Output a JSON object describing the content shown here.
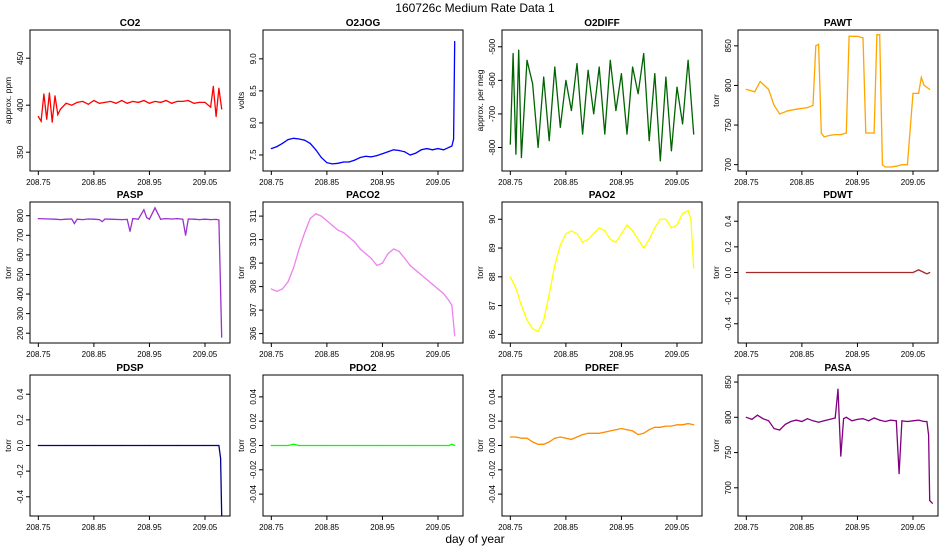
{
  "title": "160726c   Medium Rate Data 1",
  "xlabel": "day of year",
  "chart_data": [
    {
      "type": "line",
      "title": "CO2",
      "ylabel": "approx. ppm",
      "color": "#ff0000",
      "xlim": [
        208.735,
        209.095
      ],
      "ylim": [
        330,
        480
      ],
      "yticks": [
        350,
        400,
        450
      ],
      "xticks": [
        208.75,
        208.85,
        208.95,
        209.05
      ],
      "x": [
        208.75,
        208.755,
        208.76,
        208.765,
        208.77,
        208.775,
        208.78,
        208.785,
        208.79,
        208.8,
        208.81,
        208.82,
        208.83,
        208.84,
        208.85,
        208.86,
        208.87,
        208.88,
        208.89,
        208.9,
        208.91,
        208.92,
        208.93,
        208.94,
        208.95,
        208.96,
        208.97,
        208.98,
        208.99,
        209.0,
        209.01,
        209.02,
        209.03,
        209.04,
        209.05,
        209.06,
        209.065,
        209.07,
        209.075,
        209.08
      ],
      "y": [
        388,
        383,
        412,
        385,
        413,
        382,
        410,
        390,
        396,
        402,
        400,
        403,
        404,
        401,
        405,
        402,
        403,
        404,
        402,
        405,
        402,
        404,
        403,
        405,
        402,
        404,
        403,
        405,
        402,
        404,
        404,
        405,
        402,
        403,
        403,
        398,
        420,
        388,
        418,
        396
      ]
    },
    {
      "type": "line",
      "title": "O2JOG",
      "ylabel": "volts",
      "color": "#0000ff",
      "xlim": [
        208.735,
        209.095
      ],
      "ylim": [
        7.25,
        9.45
      ],
      "yticks": [
        7.5,
        8.0,
        8.5,
        9.0
      ],
      "xticks": [
        208.75,
        208.85,
        208.95,
        209.05
      ],
      "x": [
        208.75,
        208.76,
        208.77,
        208.78,
        208.79,
        208.8,
        208.81,
        208.82,
        208.83,
        208.84,
        208.85,
        208.86,
        208.87,
        208.88,
        208.89,
        208.9,
        208.91,
        208.92,
        208.93,
        208.94,
        208.95,
        208.96,
        208.97,
        208.98,
        208.99,
        209.0,
        209.01,
        209.02,
        209.03,
        209.04,
        209.05,
        209.06,
        209.07,
        209.075,
        209.078,
        209.08
      ],
      "y": [
        7.6,
        7.63,
        7.68,
        7.74,
        7.76,
        7.75,
        7.73,
        7.68,
        7.58,
        7.46,
        7.38,
        7.36,
        7.37,
        7.39,
        7.39,
        7.42,
        7.46,
        7.48,
        7.47,
        7.49,
        7.52,
        7.55,
        7.58,
        7.57,
        7.55,
        7.5,
        7.53,
        7.58,
        7.6,
        7.58,
        7.6,
        7.58,
        7.62,
        7.64,
        7.75,
        9.27
      ]
    },
    {
      "type": "line",
      "title": "O2DIFF",
      "ylabel": "approx. per meg",
      "color": "#006400",
      "xlim": [
        208.735,
        209.095
      ],
      "ylim": [
        -870,
        -450
      ],
      "yticks": [
        -800,
        -700,
        -600,
        -500
      ],
      "xticks": [
        208.75,
        208.85,
        208.95,
        209.05
      ],
      "x": [
        208.75,
        208.755,
        208.76,
        208.765,
        208.77,
        208.78,
        208.79,
        208.8,
        208.81,
        208.82,
        208.83,
        208.84,
        208.85,
        208.86,
        208.87,
        208.88,
        208.89,
        208.9,
        208.91,
        208.92,
        208.93,
        208.94,
        208.95,
        208.96,
        208.97,
        208.98,
        208.99,
        209.0,
        209.01,
        209.02,
        209.03,
        209.04,
        209.05,
        209.06,
        209.07,
        209.08
      ],
      "y": [
        -790,
        -520,
        -820,
        -510,
        -830,
        -540,
        -610,
        -800,
        -590,
        -780,
        -560,
        -740,
        -600,
        -690,
        -550,
        -760,
        -570,
        -700,
        -560,
        -760,
        -540,
        -690,
        -580,
        -760,
        -560,
        -640,
        -520,
        -780,
        -580,
        -840,
        -590,
        -810,
        -620,
        -730,
        -540,
        -760
      ]
    },
    {
      "type": "line",
      "title": "PAWT",
      "ylabel": "torr",
      "color": "#ffa500",
      "xlim": [
        208.735,
        209.095
      ],
      "ylim": [
        692,
        870
      ],
      "yticks": [
        700,
        750,
        800,
        850
      ],
      "xticks": [
        208.75,
        208.85,
        208.95,
        209.05
      ],
      "x": [
        208.75,
        208.765,
        208.775,
        208.79,
        208.8,
        208.81,
        208.825,
        208.84,
        208.86,
        208.87,
        208.875,
        208.88,
        208.885,
        208.89,
        208.9,
        208.91,
        208.92,
        208.93,
        208.935,
        208.95,
        208.96,
        208.965,
        208.97,
        208.98,
        208.985,
        208.99,
        208.995,
        209.0,
        209.01,
        209.02,
        209.03,
        209.04,
        209.05,
        209.06,
        209.065,
        209.07,
        209.08
      ],
      "y": [
        795,
        792,
        805,
        795,
        775,
        764,
        768,
        770,
        772,
        775,
        850,
        852,
        740,
        735,
        737,
        738,
        738,
        740,
        862,
        862,
        860,
        740,
        740,
        740,
        864,
        864,
        700,
        697,
        697,
        698,
        700,
        700,
        790,
        790,
        810,
        800,
        795
      ]
    },
    {
      "type": "line",
      "title": "PASP",
      "ylabel": "torr",
      "color": "#9932cc",
      "xlim": [
        208.735,
        209.095
      ],
      "ylim": [
        150,
        870
      ],
      "yticks": [
        200,
        300,
        400,
        500,
        600,
        700,
        800
      ],
      "xticks": [
        208.75,
        208.85,
        208.95,
        209.05
      ],
      "x": [
        208.75,
        208.77,
        208.78,
        208.79,
        208.8,
        208.81,
        208.815,
        208.82,
        208.83,
        208.84,
        208.85,
        208.86,
        208.865,
        208.87,
        208.88,
        208.9,
        208.91,
        208.915,
        208.92,
        208.93,
        208.94,
        208.945,
        208.95,
        208.96,
        208.97,
        208.98,
        208.99,
        209.0,
        209.01,
        209.015,
        209.02,
        209.03,
        209.04,
        209.05,
        209.06,
        209.07,
        209.075,
        209.08
      ],
      "y": [
        785,
        783,
        782,
        780,
        782,
        783,
        760,
        782,
        780,
        783,
        782,
        780,
        770,
        783,
        782,
        780,
        781,
        720,
        785,
        782,
        830,
        790,
        782,
        840,
        782,
        785,
        783,
        785,
        782,
        700,
        783,
        782,
        780,
        782,
        780,
        781,
        778,
        180
      ]
    },
    {
      "type": "line",
      "title": "PACO2",
      "ylabel": "torr",
      "color": "#ee82ee",
      "xlim": [
        208.735,
        209.095
      ],
      "ylim": [
        305.6,
        311.6
      ],
      "yticks": [
        306,
        307,
        308,
        309,
        310,
        311
      ],
      "xticks": [
        208.75,
        208.85,
        208.95,
        209.05
      ],
      "x": [
        208.75,
        208.76,
        208.77,
        208.78,
        208.79,
        208.8,
        208.81,
        208.82,
        208.83,
        208.84,
        208.85,
        208.86,
        208.87,
        208.88,
        208.89,
        208.9,
        208.91,
        208.92,
        208.93,
        208.94,
        208.95,
        208.96,
        208.97,
        208.98,
        208.99,
        209.0,
        209.01,
        209.02,
        209.03,
        209.04,
        209.05,
        209.06,
        209.07,
        209.075,
        209.08
      ],
      "y": [
        307.9,
        307.8,
        307.9,
        308.2,
        308.8,
        309.6,
        310.3,
        310.9,
        311.1,
        311.0,
        310.8,
        310.6,
        310.4,
        310.3,
        310.1,
        309.9,
        309.6,
        309.4,
        309.2,
        308.9,
        309.0,
        309.4,
        309.6,
        309.5,
        309.2,
        308.9,
        308.7,
        308.5,
        308.3,
        308.1,
        307.9,
        307.7,
        307.4,
        307.2,
        305.9
      ]
    },
    {
      "type": "line",
      "title": "PAO2",
      "ylabel": "torr",
      "color": "#ffff00",
      "xlim": [
        208.735,
        209.095
      ],
      "ylim": [
        85.7,
        90.6
      ],
      "yticks": [
        86,
        87,
        88,
        89,
        90
      ],
      "xticks": [
        208.75,
        208.85,
        208.95,
        209.05
      ],
      "x": [
        208.75,
        208.76,
        208.77,
        208.78,
        208.79,
        208.8,
        208.81,
        208.82,
        208.83,
        208.84,
        208.85,
        208.86,
        208.87,
        208.88,
        208.89,
        208.9,
        208.91,
        208.92,
        208.93,
        208.94,
        208.95,
        208.96,
        208.97,
        208.98,
        208.99,
        209.0,
        209.01,
        209.02,
        209.03,
        209.04,
        209.05,
        209.06,
        209.07,
        209.075,
        209.08
      ],
      "y": [
        88.0,
        87.6,
        87.0,
        86.5,
        86.2,
        86.1,
        86.5,
        87.4,
        88.4,
        89.1,
        89.5,
        89.6,
        89.5,
        89.2,
        89.3,
        89.5,
        89.7,
        89.6,
        89.3,
        89.2,
        89.5,
        89.8,
        89.6,
        89.3,
        89.0,
        89.3,
        89.7,
        90.0,
        90.0,
        89.7,
        89.8,
        90.2,
        90.3,
        90.0,
        88.3
      ]
    },
    {
      "type": "line",
      "title": "PDWT",
      "ylabel": "torr",
      "color": "#a52a2a",
      "xlim": [
        208.735,
        209.095
      ],
      "ylim": [
        -0.55,
        0.55
      ],
      "yticks": [
        -0.4,
        -0.2,
        0.0,
        0.2,
        0.4
      ],
      "xticks": [
        208.75,
        208.85,
        208.95,
        209.05
      ],
      "x": [
        208.75,
        208.8,
        208.85,
        208.9,
        208.95,
        209.0,
        209.05,
        209.06,
        209.07,
        209.075,
        209.08
      ],
      "y": [
        0.0,
        0.0,
        0.0,
        0.0,
        0.0,
        0.0,
        0.0,
        0.02,
        0.0,
        -0.01,
        0.0
      ]
    },
    {
      "type": "line",
      "title": "PDSP",
      "ylabel": "torr",
      "color": "#00008b",
      "xlim": [
        208.735,
        209.095
      ],
      "ylim": [
        -0.55,
        0.55
      ],
      "yticks": [
        -0.4,
        -0.2,
        0.0,
        0.2,
        0.4
      ],
      "xticks": [
        208.75,
        208.85,
        208.95,
        209.05
      ],
      "x": [
        208.75,
        208.8,
        208.85,
        208.9,
        208.95,
        209.0,
        209.05,
        209.07,
        209.075,
        209.078,
        209.08
      ],
      "y": [
        0.0,
        0.0,
        0.0,
        0.0,
        0.0,
        0.0,
        0.0,
        0.0,
        0.0,
        -0.1,
        -0.55
      ]
    },
    {
      "type": "line",
      "title": "PDO2",
      "ylabel": "torr",
      "color": "#00ff00",
      "xlim": [
        208.735,
        209.095
      ],
      "ylim": [
        -0.058,
        0.058
      ],
      "yticks": [
        -0.04,
        -0.02,
        0.0,
        0.02,
        0.04
      ],
      "xticks": [
        208.75,
        208.85,
        208.95,
        209.05
      ],
      "x": [
        208.75,
        208.78,
        208.79,
        208.8,
        208.85,
        208.9,
        208.95,
        209.0,
        209.05,
        209.07,
        209.075,
        209.08
      ],
      "y": [
        0.0,
        0.0,
        0.001,
        0.0,
        0.0,
        0.0,
        0.0,
        0.0,
        0.0,
        0.0,
        0.001,
        0.0
      ]
    },
    {
      "type": "line",
      "title": "PDREF",
      "ylabel": "torr",
      "color": "#ff8c00",
      "xlim": [
        208.735,
        209.095
      ],
      "ylim": [
        -0.058,
        0.058
      ],
      "yticks": [
        -0.04,
        -0.02,
        0.0,
        0.02,
        0.04
      ],
      "xticks": [
        208.75,
        208.85,
        208.95,
        209.05
      ],
      "x": [
        208.75,
        208.76,
        208.77,
        208.78,
        208.79,
        208.8,
        208.81,
        208.82,
        208.83,
        208.84,
        208.85,
        208.86,
        208.87,
        208.88,
        208.89,
        208.9,
        208.91,
        208.92,
        208.93,
        208.94,
        208.95,
        208.96,
        208.97,
        208.98,
        208.99,
        209.0,
        209.01,
        209.02,
        209.03,
        209.04,
        209.05,
        209.06,
        209.07,
        209.08
      ],
      "y": [
        0.007,
        0.007,
        0.006,
        0.006,
        0.003,
        0.001,
        0.001,
        0.003,
        0.006,
        0.007,
        0.006,
        0.005,
        0.007,
        0.009,
        0.01,
        0.01,
        0.01,
        0.011,
        0.012,
        0.013,
        0.014,
        0.013,
        0.012,
        0.009,
        0.01,
        0.013,
        0.015,
        0.015,
        0.016,
        0.016,
        0.017,
        0.017,
        0.018,
        0.017
      ]
    },
    {
      "type": "line",
      "title": "PASA",
      "ylabel": "torr",
      "color": "#800080",
      "xlim": [
        208.735,
        209.095
      ],
      "ylim": [
        660,
        860
      ],
      "yticks": [
        700,
        750,
        800,
        850
      ],
      "xticks": [
        208.75,
        208.85,
        208.95,
        209.05
      ],
      "x": [
        208.75,
        208.76,
        208.77,
        208.78,
        208.79,
        208.8,
        208.81,
        208.82,
        208.83,
        208.84,
        208.85,
        208.86,
        208.87,
        208.88,
        208.89,
        208.9,
        208.91,
        208.915,
        208.92,
        208.925,
        208.93,
        208.94,
        208.95,
        208.96,
        208.97,
        208.98,
        208.99,
        209.0,
        209.01,
        209.02,
        209.025,
        209.03,
        209.04,
        209.05,
        209.06,
        209.07,
        209.075,
        209.078,
        209.08,
        209.085
      ],
      "y": [
        800,
        797,
        803,
        798,
        795,
        784,
        782,
        790,
        794,
        796,
        794,
        798,
        795,
        793,
        795,
        797,
        799,
        840,
        745,
        798,
        800,
        795,
        797,
        798,
        795,
        799,
        796,
        794,
        796,
        795,
        720,
        795,
        794,
        795,
        796,
        794,
        794,
        775,
        682,
        678
      ]
    }
  ]
}
